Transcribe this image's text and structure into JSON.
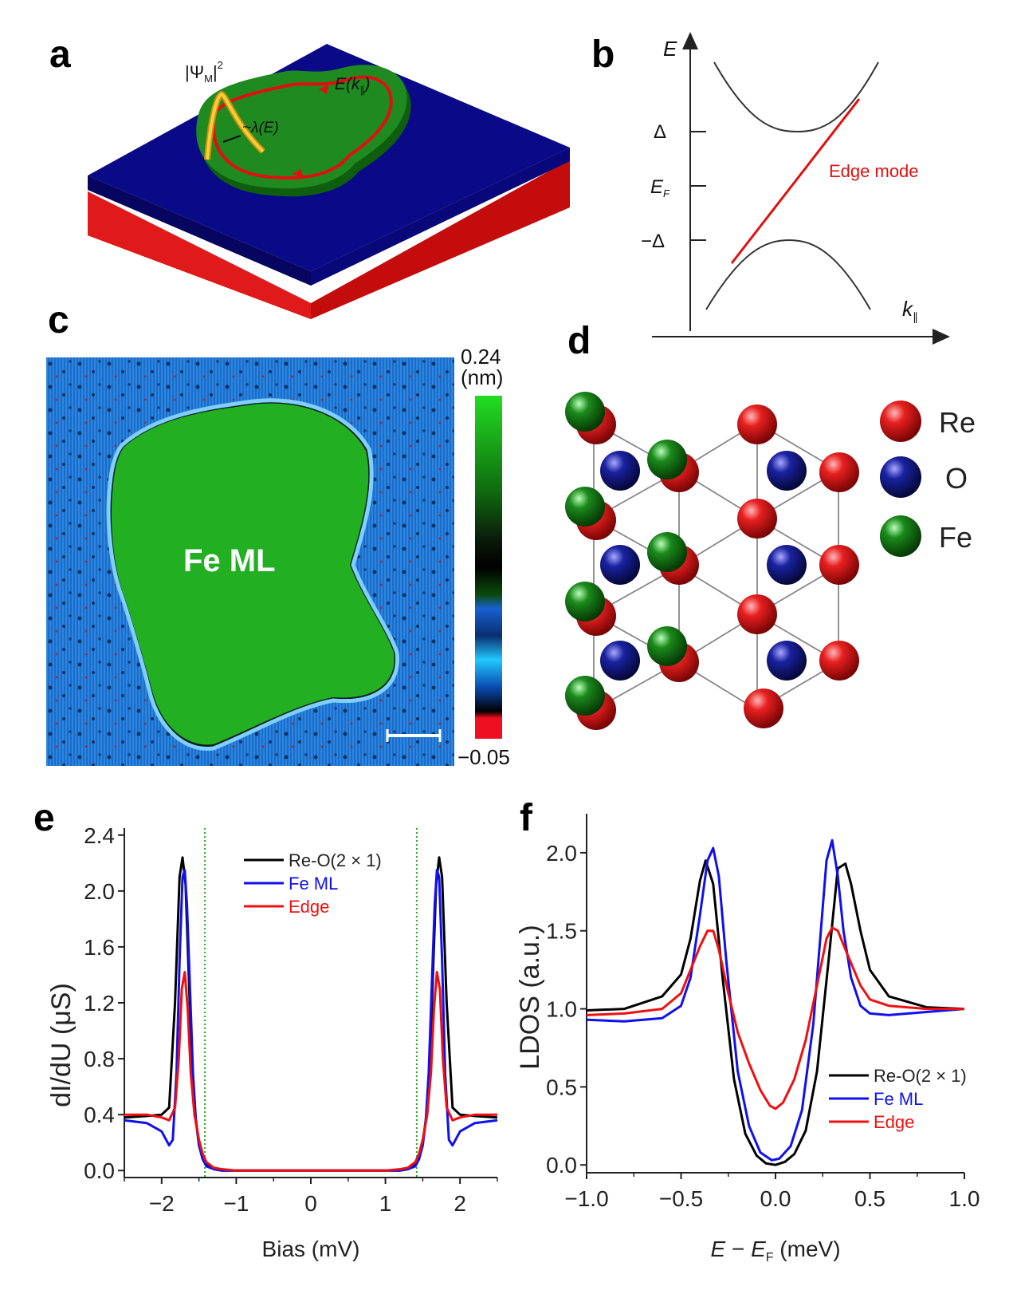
{
  "panels": {
    "a": "a",
    "b": "b",
    "c": "c",
    "d": "d",
    "e": "e",
    "f": "f"
  },
  "panel_a": {
    "psi_label": "|Ψ",
    "psi_sub": "M",
    "psi_sup": "2",
    "lambda_label": "~λ(E)",
    "ek_label": "E(k",
    "ek_sub": "∥",
    "ek_close": ")",
    "colors": {
      "top": "#000080",
      "substrate": "#e01010",
      "island": "#1a7a1a",
      "edge_path": "#e01010",
      "wavefunction": "#e0b020"
    }
  },
  "panel_b": {
    "y_axis_label": "E",
    "x_axis_label": "k",
    "x_axis_sub": "∥",
    "ticks": [
      "Δ",
      "E",
      "−Δ"
    ],
    "ef_sub": "F",
    "edge_mode_label": "Edge mode",
    "edge_color": "#e01010"
  },
  "panel_c": {
    "island_label": "Fe ML",
    "colorbar_max": "0.24",
    "colorbar_unit": "(nm)",
    "colorbar_min": "−0.05"
  },
  "panel_d": {
    "legend": [
      {
        "label": "Re",
        "color": "#d01010"
      },
      {
        "label": "O",
        "color": "#101880"
      },
      {
        "label": "Fe",
        "color": "#157015"
      }
    ]
  },
  "chart_data": [
    {
      "id": "e",
      "type": "line",
      "xlabel": "Bias (mV)",
      "ylabel": "dI/dU (μS)",
      "xlim": [
        -2.5,
        2.5
      ],
      "ylim": [
        -0.05,
        2.45
      ],
      "xticks": [
        -2,
        -1,
        0,
        1,
        2
      ],
      "xtick_labels": [
        "−2",
        "−1",
        "0",
        "1",
        "2"
      ],
      "yticks": [
        0.0,
        0.4,
        0.8,
        1.2,
        1.6,
        2.0,
        2.4
      ],
      "ytick_labels": [
        "0.0",
        "0.4",
        "0.8",
        "1.2",
        "1.6",
        "2.0",
        "2.4"
      ],
      "vlines": [
        -1.42,
        1.42
      ],
      "legend": [
        "Re-O(2 × 1)",
        "Fe ML",
        "Edge"
      ],
      "series": [
        {
          "name": "Re-O(2 × 1)",
          "color": "#000000",
          "x": [
            -2.5,
            -2.2,
            -2.0,
            -1.9,
            -1.82,
            -1.76,
            -1.72,
            -1.68,
            -1.64,
            -1.6,
            -1.55,
            -1.5,
            -1.45,
            -1.4,
            -1.3,
            -1.2,
            -1.0,
            0,
            1.0,
            1.2,
            1.3,
            1.4,
            1.45,
            1.5,
            1.55,
            1.6,
            1.64,
            1.68,
            1.72,
            1.76,
            1.82,
            1.9,
            2.0,
            2.2,
            2.5
          ],
          "y": [
            0.38,
            0.39,
            0.4,
            0.45,
            1.2,
            2.1,
            2.24,
            2.05,
            1.45,
            0.85,
            0.4,
            0.2,
            0.1,
            0.04,
            0.01,
            0.0,
            0.0,
            0.0,
            0.0,
            0.0,
            0.01,
            0.04,
            0.1,
            0.2,
            0.4,
            0.85,
            1.45,
            2.05,
            2.24,
            2.1,
            1.2,
            0.45,
            0.4,
            0.39,
            0.38
          ]
        },
        {
          "name": "Fe ML",
          "color": "#1010ee",
          "x": [
            -2.5,
            -2.2,
            -2.0,
            -1.9,
            -1.85,
            -1.8,
            -1.76,
            -1.72,
            -1.69,
            -1.66,
            -1.62,
            -1.58,
            -1.54,
            -1.5,
            -1.45,
            -1.4,
            -1.3,
            -1.2,
            -1.0,
            0,
            1.0,
            1.2,
            1.3,
            1.4,
            1.45,
            1.5,
            1.54,
            1.58,
            1.62,
            1.66,
            1.69,
            1.72,
            1.76,
            1.8,
            1.85,
            1.9,
            2.0,
            2.2,
            2.5
          ],
          "y": [
            0.36,
            0.34,
            0.28,
            0.18,
            0.22,
            0.7,
            1.5,
            2.1,
            2.15,
            1.9,
            1.3,
            0.7,
            0.35,
            0.18,
            0.08,
            0.03,
            0.01,
            0.0,
            0.0,
            0.0,
            0.0,
            0.0,
            0.01,
            0.03,
            0.08,
            0.18,
            0.35,
            0.7,
            1.3,
            1.9,
            2.15,
            2.1,
            1.5,
            0.7,
            0.22,
            0.18,
            0.28,
            0.34,
            0.36
          ]
        },
        {
          "name": "Edge",
          "color": "#ee1010",
          "x": [
            -2.5,
            -2.2,
            -2.0,
            -1.9,
            -1.82,
            -1.77,
            -1.73,
            -1.69,
            -1.65,
            -1.61,
            -1.56,
            -1.5,
            -1.45,
            -1.4,
            -1.3,
            -1.2,
            -1.0,
            0,
            1.0,
            1.2,
            1.3,
            1.4,
            1.45,
            1.5,
            1.56,
            1.61,
            1.65,
            1.69,
            1.73,
            1.77,
            1.82,
            1.9,
            2.0,
            2.2,
            2.5
          ],
          "y": [
            0.4,
            0.4,
            0.38,
            0.36,
            0.45,
            0.8,
            1.3,
            1.42,
            1.15,
            0.7,
            0.4,
            0.22,
            0.12,
            0.06,
            0.02,
            0.01,
            0.0,
            0.0,
            0.0,
            0.01,
            0.02,
            0.06,
            0.12,
            0.22,
            0.4,
            0.7,
            1.15,
            1.42,
            1.3,
            0.8,
            0.45,
            0.36,
            0.38,
            0.4,
            0.4
          ]
        }
      ]
    },
    {
      "id": "f",
      "type": "line",
      "xlabel": "E − E (meV)",
      "xlabel_parts": [
        "E",
        " − ",
        "E",
        "F",
        " (meV)"
      ],
      "ylabel": "LDOS (a.u.)",
      "xlim": [
        -1.0,
        1.0
      ],
      "ylim": [
        -0.05,
        2.25
      ],
      "xticks": [
        -1.0,
        -0.5,
        0.0,
        0.5,
        1.0
      ],
      "xtick_labels": [
        "−1.0",
        "−0.5",
        "0.0",
        "0.5",
        "1.0"
      ],
      "yticks": [
        0.0,
        0.5,
        1.0,
        1.5,
        2.0
      ],
      "ytick_labels": [
        "0.0",
        "0.5",
        "1.0",
        "1.5",
        "2.0"
      ],
      "legend": [
        "Re-O(2 × 1)",
        "Fe ML",
        "Edge"
      ],
      "series": [
        {
          "name": "Re-O(2 × 1)",
          "color": "#000000",
          "x": [
            -1.0,
            -0.8,
            -0.6,
            -0.5,
            -0.45,
            -0.4,
            -0.37,
            -0.33,
            -0.28,
            -0.22,
            -0.16,
            -0.1,
            -0.05,
            0.0,
            0.05,
            0.1,
            0.16,
            0.22,
            0.28,
            0.33,
            0.37,
            0.4,
            0.45,
            0.5,
            0.6,
            0.8,
            1.0
          ],
          "y": [
            0.99,
            1.0,
            1.08,
            1.22,
            1.45,
            1.82,
            1.95,
            1.8,
            1.2,
            0.55,
            0.2,
            0.06,
            0.01,
            0.0,
            0.02,
            0.07,
            0.22,
            0.6,
            1.3,
            1.9,
            1.93,
            1.8,
            1.5,
            1.25,
            1.08,
            1.01,
            1.0
          ]
        },
        {
          "name": "Fe ML",
          "color": "#1010ee",
          "x": [
            -1.0,
            -0.8,
            -0.6,
            -0.5,
            -0.45,
            -0.4,
            -0.36,
            -0.33,
            -0.3,
            -0.26,
            -0.2,
            -0.14,
            -0.08,
            -0.02,
            0.02,
            0.08,
            0.14,
            0.2,
            0.24,
            0.27,
            0.3,
            0.33,
            0.36,
            0.4,
            0.45,
            0.5,
            0.6,
            0.8,
            1.0
          ],
          "y": [
            0.93,
            0.92,
            0.94,
            1.02,
            1.2,
            1.6,
            1.95,
            2.03,
            1.85,
            1.3,
            0.6,
            0.25,
            0.08,
            0.03,
            0.04,
            0.12,
            0.35,
            0.9,
            1.5,
            1.95,
            2.08,
            1.85,
            1.5,
            1.2,
            1.02,
            0.97,
            0.96,
            0.98,
            1.0
          ]
        },
        {
          "name": "Edge",
          "color": "#ee1010",
          "x": [
            -1.0,
            -0.8,
            -0.6,
            -0.5,
            -0.45,
            -0.4,
            -0.36,
            -0.33,
            -0.3,
            -0.25,
            -0.2,
            -0.14,
            -0.08,
            -0.03,
            0.0,
            0.04,
            0.1,
            0.16,
            0.22,
            0.27,
            0.3,
            0.33,
            0.38,
            0.45,
            0.5,
            0.6,
            0.8,
            1.0
          ],
          "y": [
            0.96,
            0.97,
            1.0,
            1.1,
            1.25,
            1.4,
            1.5,
            1.5,
            1.38,
            1.1,
            0.85,
            0.65,
            0.48,
            0.38,
            0.36,
            0.4,
            0.55,
            0.8,
            1.15,
            1.45,
            1.52,
            1.5,
            1.35,
            1.15,
            1.06,
            1.02,
            1.0,
            1.0
          ]
        }
      ]
    }
  ]
}
